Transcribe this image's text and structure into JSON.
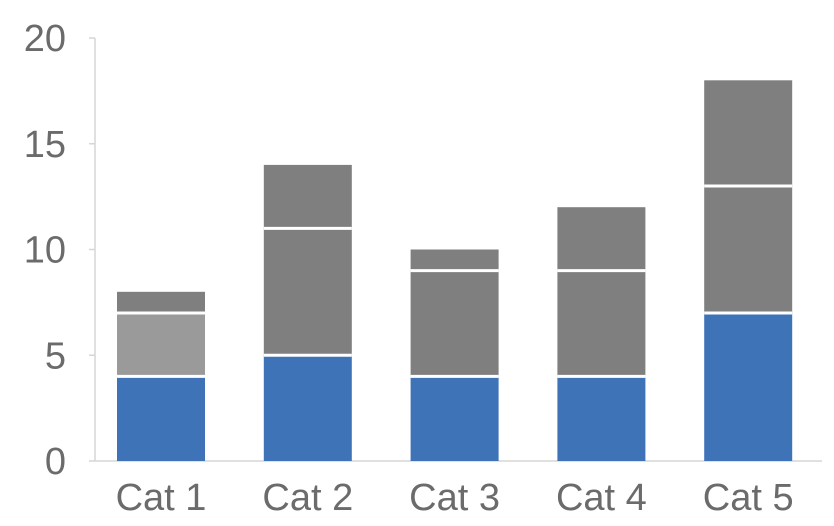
{
  "chart_data": {
    "type": "bar",
    "stacked": true,
    "categories": [
      "Cat 1",
      "Cat 2",
      "Cat 3",
      "Cat 4",
      "Cat 5"
    ],
    "series": [
      {
        "values": [
          4,
          5,
          4,
          4,
          7
        ],
        "color": "#3f73b8"
      },
      {
        "values": [
          3,
          6,
          5,
          5,
          6
        ],
        "color": "#7f7f7f"
      },
      {
        "values": [
          1,
          3,
          1,
          3,
          5
        ],
        "color": "#7f7f7f"
      }
    ],
    "segment_colors_override": {
      "Cat 1": [
        "#3f73b8",
        "#9a9a9a",
        "#7f7f7f"
      ]
    },
    "yticks": [
      "0",
      "5",
      "10",
      "15",
      "20"
    ],
    "ylim": [
      0,
      20
    ],
    "grid": false,
    "legend": "none",
    "title": "",
    "xlabel": "",
    "ylabel": ""
  }
}
